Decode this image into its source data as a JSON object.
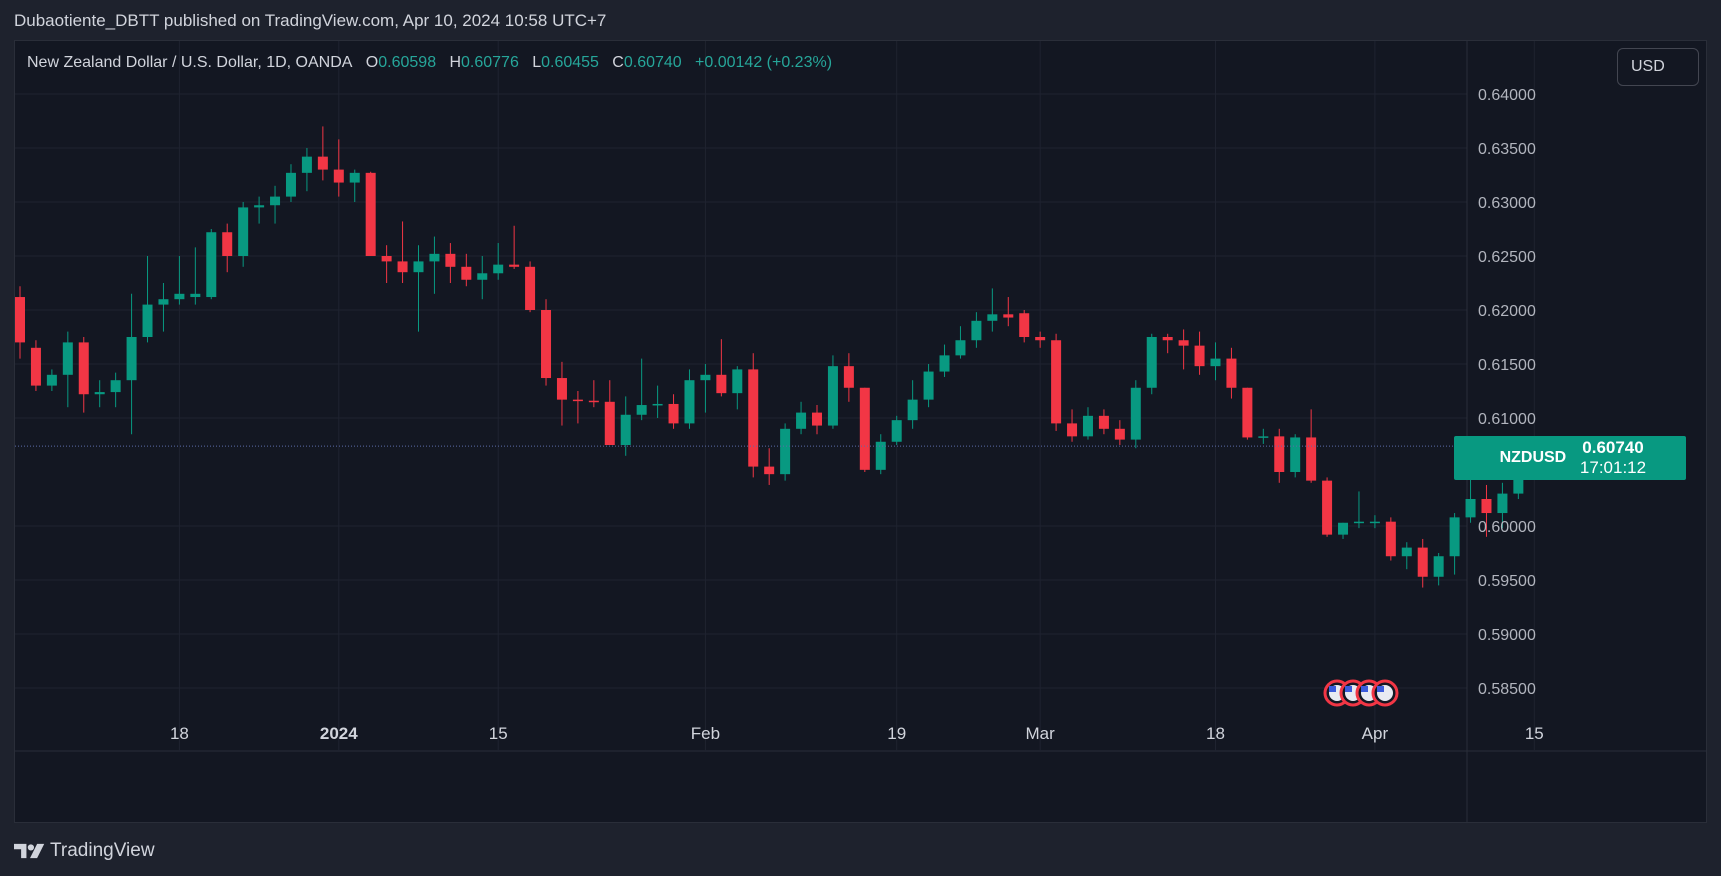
{
  "header": {
    "publisher_line": "Dubaotiente_DBTT published on TradingView.com, Apr 10, 2024 10:58 UTC+7"
  },
  "legend": {
    "title": "New Zealand Dollar / U.S. Dollar, 1D, OANDA",
    "o_label": "O",
    "o_value": "0.60598",
    "h_label": "H",
    "h_value": "0.60776",
    "l_label": "L",
    "l_value": "0.60455",
    "c_label": "C",
    "c_value": "0.60740",
    "change": "+0.00142 (+0.23%)"
  },
  "currency_button": "USD",
  "price_tag": {
    "symbol": "NZDUSD",
    "price": "0.60740",
    "countdown": "17:01:12"
  },
  "footer": {
    "brand": "TradingView"
  },
  "icons": {
    "events": "us-flag-event-icon",
    "logo": "tradingview-logo-icon"
  },
  "colors": {
    "up": "#089981",
    "down": "#f23645",
    "background": "#131722",
    "grid": "#1f2330",
    "text": "#d1d4dc"
  },
  "chart_data": {
    "type": "candlestick",
    "symbol": "NZDUSD",
    "timeframe": "1D",
    "y_ticks": [
      "0.64000",
      "0.63500",
      "0.63000",
      "0.62500",
      "0.62000",
      "0.61500",
      "0.61000",
      "0.60000",
      "0.59500",
      "0.59000",
      "0.58500"
    ],
    "ylim": [
      0.584,
      0.642
    ],
    "x_ticks": [
      "18",
      "2024",
      "15",
      "Feb",
      "19",
      "Mar",
      "18",
      "Apr",
      "15"
    ],
    "grid": true,
    "last_price": 0.6074,
    "candles": [
      [
        0.6212,
        0.6222,
        0.6155,
        0.617
      ],
      [
        0.6165,
        0.6172,
        0.6125,
        0.613
      ],
      [
        0.613,
        0.6145,
        0.6125,
        0.614
      ],
      [
        0.614,
        0.618,
        0.611,
        0.617
      ],
      [
        0.617,
        0.6175,
        0.6105,
        0.6122
      ],
      [
        0.6122,
        0.6135,
        0.611,
        0.6124
      ],
      [
        0.6124,
        0.6142,
        0.611,
        0.6135
      ],
      [
        0.6135,
        0.6215,
        0.6085,
        0.6175
      ],
      [
        0.6175,
        0.625,
        0.617,
        0.6205
      ],
      [
        0.6205,
        0.6225,
        0.618,
        0.621
      ],
      [
        0.621,
        0.625,
        0.6205,
        0.6215
      ],
      [
        0.6212,
        0.6258,
        0.6205,
        0.6215
      ],
      [
        0.6212,
        0.6275,
        0.621,
        0.6272
      ],
      [
        0.6272,
        0.628,
        0.6235,
        0.625
      ],
      [
        0.625,
        0.63,
        0.624,
        0.6295
      ],
      [
        0.6295,
        0.6305,
        0.628,
        0.6297
      ],
      [
        0.6297,
        0.6315,
        0.628,
        0.6305
      ],
      [
        0.6305,
        0.6335,
        0.63,
        0.6327
      ],
      [
        0.6327,
        0.635,
        0.631,
        0.6342
      ],
      [
        0.6342,
        0.637,
        0.632,
        0.633
      ],
      [
        0.633,
        0.6358,
        0.6305,
        0.6318
      ],
      [
        0.6318,
        0.633,
        0.63,
        0.6327
      ],
      [
        0.6327,
        0.6328,
        0.625,
        0.625
      ],
      [
        0.625,
        0.626,
        0.6225,
        0.6245
      ],
      [
        0.6245,
        0.6282,
        0.6225,
        0.6235
      ],
      [
        0.6235,
        0.626,
        0.618,
        0.6245
      ],
      [
        0.6245,
        0.6268,
        0.6215,
        0.6252
      ],
      [
        0.6252,
        0.6262,
        0.6225,
        0.624
      ],
      [
        0.624,
        0.6252,
        0.6222,
        0.6228
      ],
      [
        0.6228,
        0.625,
        0.621,
        0.6234
      ],
      [
        0.6234,
        0.6262,
        0.6228,
        0.6242
      ],
      [
        0.6242,
        0.6278,
        0.6238,
        0.624
      ],
      [
        0.624,
        0.6245,
        0.6198,
        0.62
      ],
      [
        0.62,
        0.621,
        0.613,
        0.6137
      ],
      [
        0.6137,
        0.6152,
        0.6093,
        0.6117
      ],
      [
        0.6117,
        0.6125,
        0.6095,
        0.6116
      ],
      [
        0.6116,
        0.6135,
        0.611,
        0.6115
      ],
      [
        0.6115,
        0.6135,
        0.6075,
        0.6075
      ],
      [
        0.6075,
        0.612,
        0.6065,
        0.6103
      ],
      [
        0.6103,
        0.6155,
        0.6098,
        0.6112
      ],
      [
        0.6112,
        0.613,
        0.61,
        0.6113
      ],
      [
        0.6113,
        0.6122,
        0.609,
        0.6095
      ],
      [
        0.6095,
        0.6145,
        0.609,
        0.6135
      ],
      [
        0.6135,
        0.615,
        0.6105,
        0.614
      ],
      [
        0.614,
        0.6173,
        0.612,
        0.6123
      ],
      [
        0.6123,
        0.6148,
        0.6108,
        0.6145
      ],
      [
        0.6145,
        0.616,
        0.6045,
        0.6055
      ],
      [
        0.6055,
        0.6072,
        0.6038,
        0.6048
      ],
      [
        0.6048,
        0.6095,
        0.6042,
        0.609
      ],
      [
        0.609,
        0.6115,
        0.6085,
        0.6105
      ],
      [
        0.6105,
        0.6112,
        0.6085,
        0.6093
      ],
      [
        0.6093,
        0.6158,
        0.609,
        0.6148
      ],
      [
        0.6148,
        0.616,
        0.6115,
        0.6128
      ],
      [
        0.6128,
        0.6128,
        0.605,
        0.6052
      ],
      [
        0.6052,
        0.6085,
        0.6048,
        0.6078
      ],
      [
        0.6078,
        0.6102,
        0.6075,
        0.6098
      ],
      [
        0.6098,
        0.6135,
        0.609,
        0.6117
      ],
      [
        0.6117,
        0.615,
        0.611,
        0.6143
      ],
      [
        0.6143,
        0.6168,
        0.6138,
        0.6158
      ],
      [
        0.6158,
        0.6185,
        0.6155,
        0.6172
      ],
      [
        0.6172,
        0.6198,
        0.6165,
        0.619
      ],
      [
        0.619,
        0.622,
        0.618,
        0.6196
      ],
      [
        0.6196,
        0.6212,
        0.6185,
        0.6193
      ],
      [
        0.6197,
        0.62,
        0.617,
        0.6175
      ],
      [
        0.6175,
        0.618,
        0.6165,
        0.6172
      ],
      [
        0.6172,
        0.6178,
        0.6088,
        0.6095
      ],
      [
        0.6095,
        0.6108,
        0.6078,
        0.6083
      ],
      [
        0.6083,
        0.611,
        0.608,
        0.6102
      ],
      [
        0.6102,
        0.6108,
        0.6085,
        0.609
      ],
      [
        0.609,
        0.6098,
        0.6075,
        0.608
      ],
      [
        0.608,
        0.6135,
        0.6072,
        0.6128
      ],
      [
        0.6128,
        0.6178,
        0.6122,
        0.6175
      ],
      [
        0.6175,
        0.6178,
        0.616,
        0.6172
      ],
      [
        0.6172,
        0.6182,
        0.6145,
        0.6167
      ],
      [
        0.6167,
        0.618,
        0.614,
        0.6148
      ],
      [
        0.6148,
        0.617,
        0.6135,
        0.6155
      ],
      [
        0.6155,
        0.6165,
        0.6118,
        0.6128
      ],
      [
        0.6128,
        0.6128,
        0.608,
        0.6082
      ],
      [
        0.6082,
        0.609,
        0.6076,
        0.6083
      ],
      [
        0.6083,
        0.609,
        0.604,
        0.605
      ],
      [
        0.605,
        0.6085,
        0.6045,
        0.6082
      ],
      [
        0.6082,
        0.6108,
        0.604,
        0.6042
      ],
      [
        0.6042,
        0.6045,
        0.599,
        0.5992
      ],
      [
        0.5992,
        0.6003,
        0.5988,
        0.6003
      ],
      [
        0.6003,
        0.6032,
        0.5998,
        0.6004
      ],
      [
        0.6004,
        0.601,
        0.5998,
        0.6004
      ],
      [
        0.6004,
        0.6008,
        0.5968,
        0.5972
      ],
      [
        0.5972,
        0.5985,
        0.596,
        0.598
      ],
      [
        0.598,
        0.5988,
        0.5943,
        0.5953
      ],
      [
        0.5953,
        0.5975,
        0.5945,
        0.5972
      ],
      [
        0.5972,
        0.6012,
        0.5955,
        0.6008
      ],
      [
        0.6008,
        0.6045,
        0.6003,
        0.6025
      ],
      [
        0.6025,
        0.6038,
        0.599,
        0.6012
      ],
      [
        0.6012,
        0.604,
        0.5998,
        0.603
      ],
      [
        0.603,
        0.6078,
        0.6025,
        0.606
      ],
      [
        0.606,
        0.6078,
        0.6045,
        0.6074
      ]
    ]
  }
}
